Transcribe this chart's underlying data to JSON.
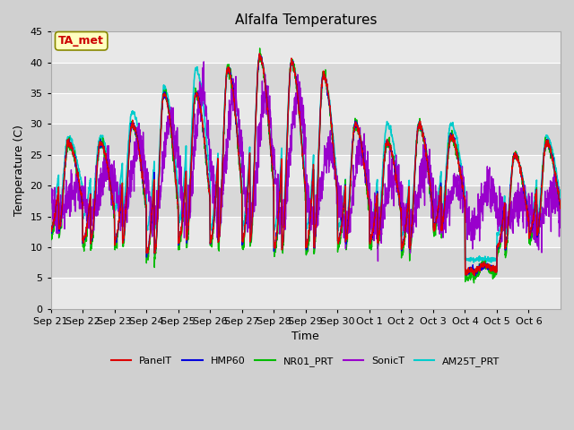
{
  "title": "Alfalfa Temperatures",
  "xlabel": "Time",
  "ylabel": "Temperature (C)",
  "ylim": [
    0,
    45
  ],
  "yticks": [
    0,
    5,
    10,
    15,
    20,
    25,
    30,
    35,
    40,
    45
  ],
  "fig_bg": "#d0d0d0",
  "plot_bg_light": "#e8e8e8",
  "plot_bg_dark": "#d8d8d8",
  "annotation_text": "TA_met",
  "annotation_color": "#cc0000",
  "annotation_bg": "#ffffc0",
  "annotation_border": "#888800",
  "series": {
    "PanelT": {
      "color": "#dd0000",
      "lw": 1.0
    },
    "HMP60": {
      "color": "#0000dd",
      "lw": 1.0
    },
    "NR01_PRT": {
      "color": "#00bb00",
      "lw": 1.0
    },
    "SonicT": {
      "color": "#9900cc",
      "lw": 1.0
    },
    "AM25T_PRT": {
      "color": "#00cccc",
      "lw": 1.2
    }
  },
  "x_tick_labels": [
    "Sep 21",
    "Sep 22",
    "Sep 23",
    "Sep 24",
    "Sep 25",
    "Sep 26",
    "Sep 27",
    "Sep 28",
    "Sep 29",
    "Sep 30",
    "Oct 1",
    "Oct 2",
    "Oct 3",
    "Oct 4",
    "Oct 5",
    "Oct 6"
  ],
  "n_days": 16,
  "pts_per_day": 144,
  "day_maxes_core": [
    27,
    27,
    30,
    35,
    35,
    39,
    41,
    40,
    38,
    30,
    27,
    30,
    28,
    7,
    25,
    27
  ],
  "day_mins_core": [
    13,
    11,
    11,
    9,
    11,
    11,
    11,
    10,
    10,
    11,
    11,
    10,
    13,
    6,
    10,
    12
  ],
  "day_maxes_am25t": [
    28,
    28,
    32,
    36,
    39,
    39,
    41,
    40,
    38,
    30,
    30,
    30,
    30,
    8,
    25,
    28
  ],
  "day_mins_am25t": [
    16,
    15,
    16,
    13,
    14,
    13,
    13,
    13,
    13,
    13,
    13,
    12,
    15,
    8,
    12,
    14
  ],
  "day_maxes_sonic": [
    20,
    23,
    27,
    31,
    35,
    35,
    35,
    35,
    26,
    26,
    22,
    23,
    20,
    20,
    17,
    18
  ],
  "day_mins_sonic": [
    15,
    15,
    15,
    15,
    15,
    15,
    15,
    15,
    14,
    13,
    13,
    13,
    15,
    13,
    14,
    14
  ]
}
